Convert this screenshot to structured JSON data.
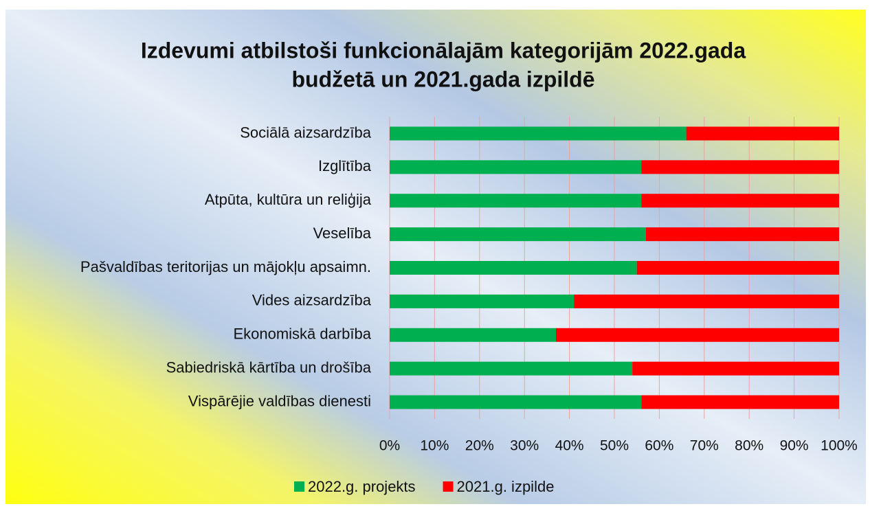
{
  "chart_data": {
    "type": "stacked_barh",
    "title": "Izdevumi atbilstoši funkcionālajām kategorijām 2022.gada",
    "subtitle": "budžetā un 2021.gada izpildē",
    "categories": [
      "Sociālā aizsardzība",
      "Izglītība",
      "Atpūta, kultūra un reliģija",
      "Veselība",
      "Pašvaldības teritorijas un mājokļu apsaimn.",
      "Vides aizsardzība",
      "Ekonomiskā darbība",
      "Sabiedriskā kārtība un drošība",
      "Vispārējie valdības dienesti"
    ],
    "series": [
      {
        "name": "2022.g. projekts",
        "color": "#00b050",
        "values": [
          66,
          56,
          56,
          57,
          55,
          41,
          37,
          54,
          56
        ]
      },
      {
        "name": "2021.g. izpilde",
        "color": "#ff0000",
        "values": [
          34,
          44,
          44,
          43,
          45,
          59,
          63,
          46,
          44
        ]
      }
    ],
    "xlim": [
      0,
      100
    ],
    "xticks": [
      {
        "value": 0,
        "label": "0%"
      },
      {
        "value": 10,
        "label": "10%"
      },
      {
        "value": 20,
        "label": "20%"
      },
      {
        "value": 30,
        "label": "30%"
      },
      {
        "value": 40,
        "label": "40%"
      },
      {
        "value": 50,
        "label": "50%"
      },
      {
        "value": 60,
        "label": "60%"
      },
      {
        "value": 70,
        "label": "70%"
      },
      {
        "value": 80,
        "label": "80%"
      },
      {
        "value": 90,
        "label": "90%"
      },
      {
        "value": 100,
        "label": "100%"
      }
    ],
    "grid": true,
    "grid_color": "#e9a3a3",
    "legend": "bottom"
  }
}
